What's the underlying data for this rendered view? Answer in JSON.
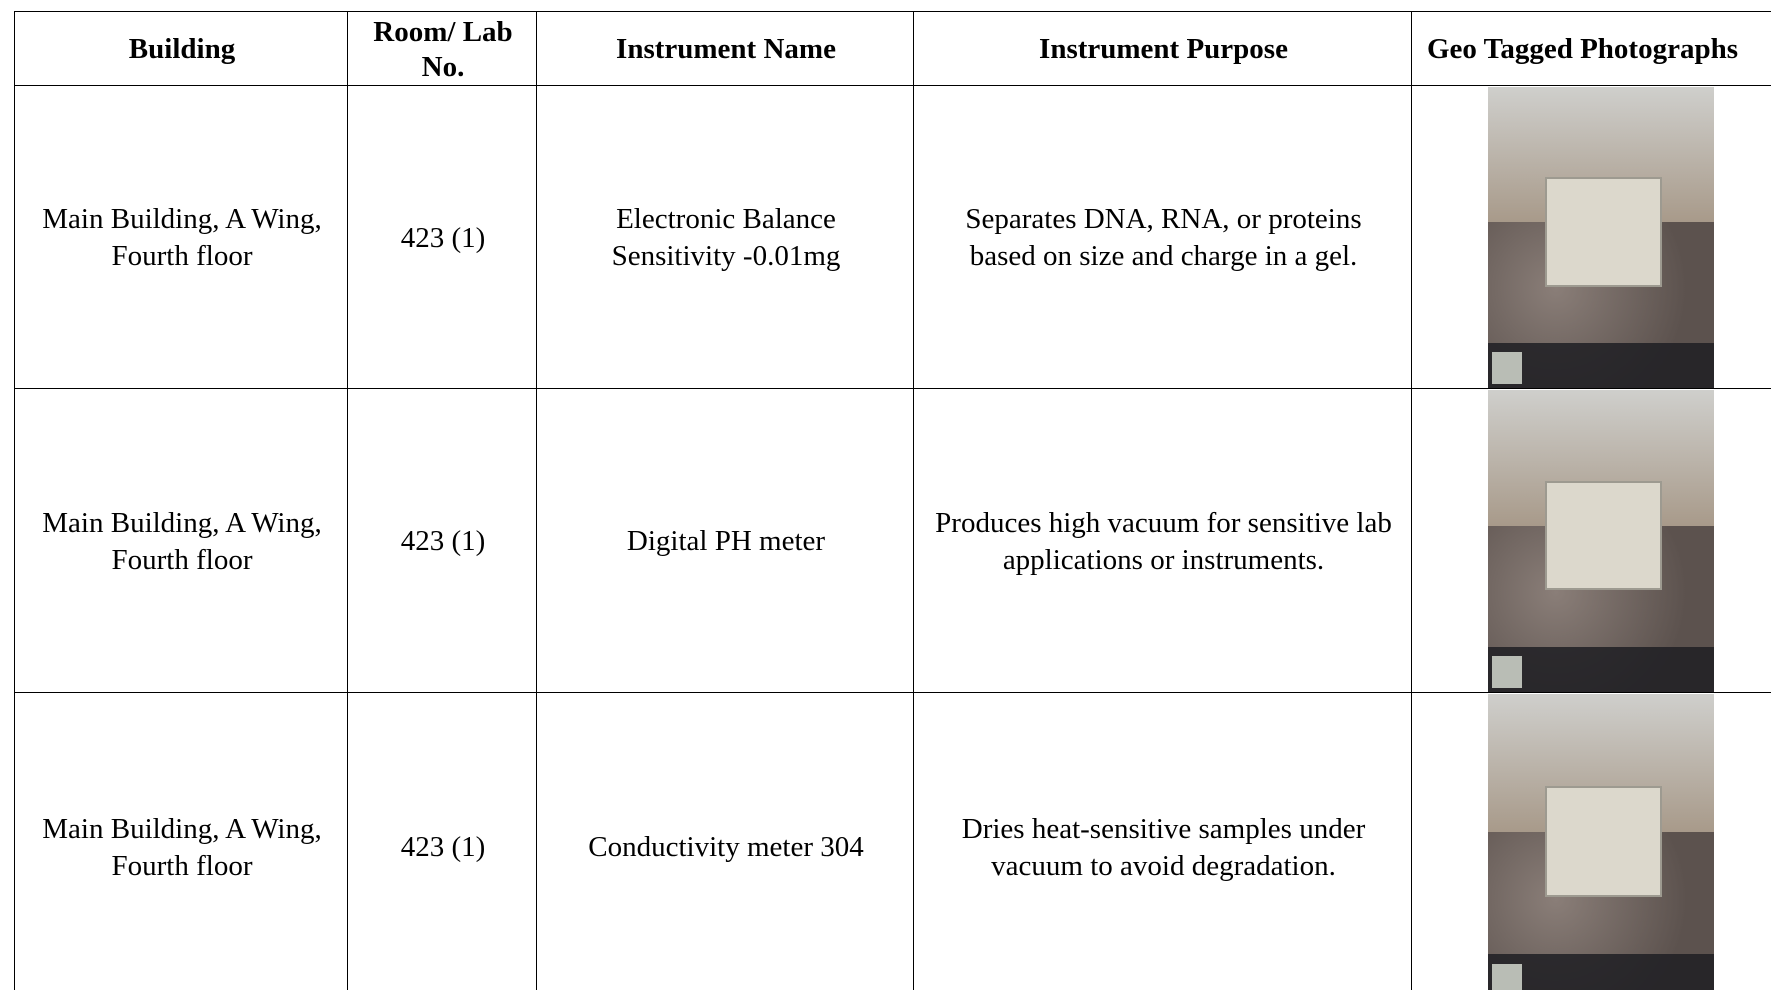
{
  "table": {
    "header": [
      "Building",
      "Room/ Lab No.",
      "Instrument Name",
      "Instrument Purpose",
      "Geo Tagged Photographs"
    ],
    "rows": [
      [
        "Main Building, A Wing, Fourth floor",
        "423 (1)",
        "Electronic Balance Sensitivity -0.01mg",
        "Separates DNA, RNA, or proteins based on size and charge in a gel."
      ],
      [
        "Main Building, A Wing, Fourth floor",
        "423 (1)",
        "Digital PH meter",
        "Produces high vacuum for sensitive lab applications or instruments."
      ],
      [
        "Main Building, A Wing, Fourth floor",
        "423 (1)",
        "Conductivity meter 304",
        "Dries heat-sensitive samples under vacuum to avoid degradation."
      ]
    ]
  }
}
